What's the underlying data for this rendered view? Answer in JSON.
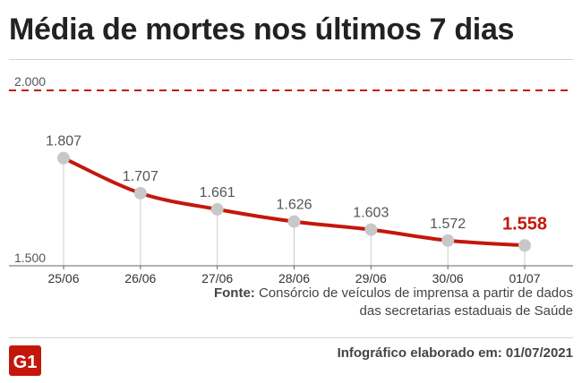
{
  "title": "Média de mortes nos últimos 7 dias",
  "source": {
    "label": "Fonte:",
    "text": " Consórcio de veículos de imprensa a partir de dados das secretarias estaduais de Saúde"
  },
  "credit": "Infográfico elaborado em: 01/07/2021",
  "logo": "G1",
  "colors": {
    "line": "#c4170c",
    "highlight": "#c4170c",
    "point": "#c8c8c8",
    "reference": "#c4170c",
    "text": "#555555"
  },
  "chart_data": {
    "type": "line",
    "x": [
      "25/06",
      "26/06",
      "27/06",
      "28/06",
      "29/06",
      "30/06",
      "01/07"
    ],
    "values": [
      1807,
      1707,
      1661,
      1626,
      1603,
      1572,
      1558
    ],
    "value_labels": [
      "1.807",
      "1.707",
      "1.661",
      "1.626",
      "1.603",
      "1.572",
      "1.558"
    ],
    "highlight_index": 6,
    "reference_line": {
      "value": 2000,
      "label": "2.000",
      "style": "dashed"
    },
    "y_ticks": [
      {
        "value": 1500,
        "label": "1.500"
      }
    ],
    "ylim": [
      1500,
      2000
    ],
    "grid": false
  }
}
